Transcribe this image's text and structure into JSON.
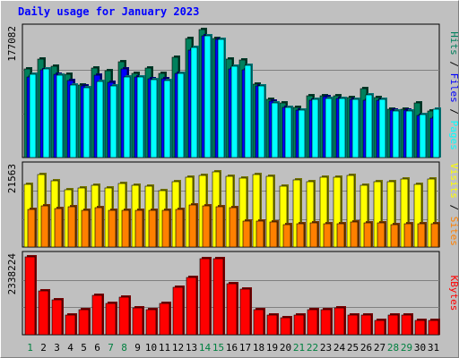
{
  "title": "Daily usage for January 2023",
  "colors": {
    "hits": "#00805c",
    "files": "#0000ff",
    "pages": "#00ffff",
    "visits": "#ffff00",
    "sites": "#ff8000",
    "kbytes": "#ff0000",
    "weekday_label": "#000000",
    "weekend_label": "#008040"
  },
  "chart_data": [
    {
      "type": "bar",
      "title": "Pages / Files / Hits",
      "ymax_label": "177082",
      "ylim": [
        0,
        177082
      ],
      "grid": true,
      "right_legend": [
        {
          "text": "Hits",
          "color": "#00805c"
        },
        {
          "text": " / ",
          "color": "#000000"
        },
        {
          "text": "Files",
          "color": "#0000ff"
        },
        {
          "text": " / ",
          "color": "#000000"
        },
        {
          "text": "Pages",
          "color": "#00ffff"
        }
      ],
      "categories": [
        "1",
        "2",
        "3",
        "4",
        "5",
        "6",
        "7",
        "8",
        "9",
        "10",
        "11",
        "12",
        "13",
        "14",
        "15",
        "16",
        "17",
        "18",
        "19",
        "20",
        "21",
        "22",
        "23",
        "24",
        "25",
        "26",
        "27",
        "28",
        "29",
        "30",
        "31"
      ],
      "series": [
        {
          "name": "Hits",
          "values": [
            123000,
            136000,
            126000,
            115000,
            100000,
            124000,
            120000,
            132000,
            116000,
            124000,
            117000,
            139000,
            165000,
            177000,
            165000,
            136000,
            135000,
            102000,
            80000,
            76000,
            69000,
            85000,
            86000,
            86000,
            83000,
            95000,
            83000,
            67000,
            67000,
            75000,
            65000
          ]
        },
        {
          "name": "Files",
          "values": [
            111000,
            121000,
            115000,
            107000,
            99000,
            114000,
            104000,
            123000,
            111000,
            109000,
            109000,
            117000,
            149000,
            168000,
            163000,
            123000,
            121000,
            99000,
            78000,
            69000,
            66000,
            79000,
            84000,
            82000,
            81000,
            79000,
            79000,
            66000,
            66000,
            58000,
            55000
          ]
        },
        {
          "name": "Pages",
          "values": [
            115000,
            123000,
            114000,
            100000,
            97000,
            105000,
            99000,
            112000,
            111000,
            108000,
            107000,
            117000,
            152000,
            168000,
            163000,
            126000,
            128000,
            99000,
            75000,
            69000,
            66000,
            80000,
            82000,
            82000,
            80000,
            87000,
            80000,
            64000,
            64000,
            59000,
            67000
          ]
        }
      ]
    },
    {
      "type": "bar",
      "title": "Sites / Visits",
      "ymax_label": "21563",
      "ylim": [
        0,
        21563
      ],
      "grid": true,
      "right_legend": [
        {
          "text": "Visits",
          "color": "#ffff00"
        },
        {
          "text": " / ",
          "color": "#000000"
        },
        {
          "text": "Sites",
          "color": "#ff8000"
        }
      ],
      "categories": [
        "1",
        "2",
        "3",
        "4",
        "5",
        "6",
        "7",
        "8",
        "9",
        "10",
        "11",
        "12",
        "13",
        "14",
        "15",
        "16",
        "17",
        "18",
        "19",
        "20",
        "21",
        "22",
        "23",
        "24",
        "25",
        "26",
        "27",
        "28",
        "29",
        "30",
        "31"
      ],
      "series": [
        {
          "name": "Visits",
          "values": [
            17000,
            19600,
            18000,
            15600,
            16100,
            16700,
            16100,
            17300,
            16800,
            16400,
            15300,
            17700,
            19000,
            19300,
            20400,
            19100,
            18700,
            19600,
            19100,
            16500,
            18100,
            17700,
            18900,
            19000,
            19300,
            16700,
            17800,
            17600,
            18400,
            16900,
            18300
          ]
        },
        {
          "name": "Sites",
          "values": [
            10200,
            11200,
            10300,
            11000,
            10000,
            10600,
            10000,
            10000,
            10000,
            9900,
            10000,
            10200,
            11300,
            11200,
            10900,
            10700,
            7000,
            7000,
            6800,
            6100,
            6300,
            6600,
            6300,
            6300,
            6900,
            6500,
            6500,
            6100,
            6300,
            6400,
            6300
          ]
        }
      ]
    },
    {
      "type": "bar",
      "title": "KBytes",
      "ymax_label": "2338224",
      "ylim": [
        0,
        2338224
      ],
      "grid": true,
      "right_legend": [
        {
          "text": "KBytes",
          "color": "#ff0000"
        }
      ],
      "categories": [
        "1",
        "2",
        "3",
        "4",
        "5",
        "6",
        "7",
        "8",
        "9",
        "10",
        "11",
        "12",
        "13",
        "14",
        "15",
        "16",
        "17",
        "18",
        "19",
        "20",
        "21",
        "22",
        "23",
        "24",
        "25",
        "26",
        "27",
        "28",
        "29",
        "30",
        "31"
      ],
      "series": [
        {
          "name": "KBytes",
          "values": [
            2338224,
            1320000,
            1050000,
            587000,
            755000,
            1170000,
            932000,
            1130000,
            797000,
            755000,
            932000,
            1420000,
            1720000,
            2280000,
            2280000,
            1540000,
            1380000,
            755000,
            587000,
            503000,
            587000,
            755000,
            755000,
            797000,
            587000,
            587000,
            436000,
            587000,
            587000,
            419000,
            419000
          ]
        }
      ]
    }
  ],
  "x_axis": {
    "labels": [
      "1",
      "2",
      "3",
      "4",
      "5",
      "6",
      "7",
      "8",
      "9",
      "10",
      "11",
      "12",
      "13",
      "14",
      "15",
      "16",
      "17",
      "18",
      "19",
      "20",
      "21",
      "22",
      "23",
      "24",
      "25",
      "26",
      "27",
      "28",
      "29",
      "30",
      "31"
    ],
    "weekend_days": [
      "1",
      "7",
      "8",
      "14",
      "15",
      "21",
      "22",
      "28",
      "29"
    ]
  }
}
